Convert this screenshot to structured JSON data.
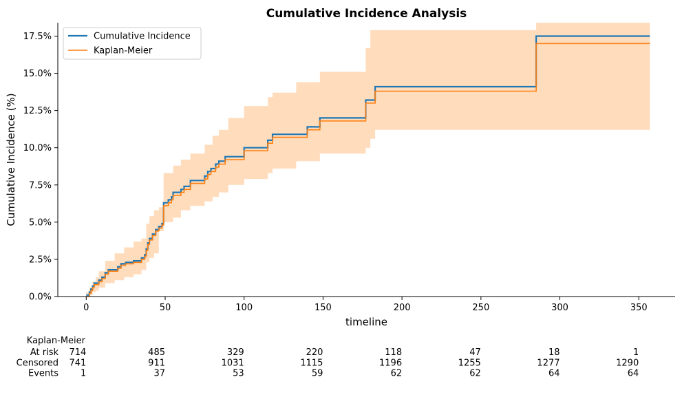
{
  "chart_data": {
    "type": "line",
    "title": "Cumulative Incidence Analysis",
    "xlabel": "timeline",
    "ylabel": "Cumulative Incidence (%)",
    "xlim": [
      -18,
      373
    ],
    "ylim": [
      0,
      18.4
    ],
    "x_ticks": [
      0,
      50,
      100,
      150,
      200,
      250,
      300,
      350
    ],
    "x_tick_labels": [
      "0",
      "50",
      "100",
      "150",
      "200",
      "250",
      "300",
      "350"
    ],
    "y_ticks": [
      0,
      2.5,
      5,
      7.5,
      10,
      12.5,
      15,
      17.5
    ],
    "y_tick_labels": [
      "0.0%",
      "2.5%",
      "5.0%",
      "7.5%",
      "10.0%",
      "12.5%",
      "15.0%",
      "17.5%"
    ],
    "grid": false,
    "legend_placement": "top-left",
    "series": [
      {
        "name": "Cumulative Incidence",
        "color": "#1f77b4",
        "step": "post",
        "x": [
          0,
          2,
          3,
          4,
          5,
          8,
          10,
          12,
          14,
          20,
          22,
          25,
          30,
          35,
          37,
          38,
          39,
          40,
          42,
          44,
          46,
          48,
          49,
          52,
          54,
          55,
          60,
          62,
          66,
          75,
          77,
          79,
          82,
          84,
          88,
          100,
          115,
          118,
          140,
          148,
          177,
          183,
          285,
          357
        ],
        "y": [
          0.1,
          0.3,
          0.5,
          0.7,
          0.9,
          1.1,
          1.3,
          1.6,
          1.8,
          2.0,
          2.2,
          2.3,
          2.4,
          2.6,
          2.8,
          3.2,
          3.6,
          3.9,
          4.2,
          4.5,
          4.7,
          4.9,
          6.3,
          6.5,
          6.7,
          7.0,
          7.2,
          7.4,
          7.8,
          8.1,
          8.4,
          8.6,
          8.9,
          9.1,
          9.4,
          10.0,
          10.5,
          10.9,
          11.4,
          12.0,
          13.2,
          14.1,
          17.5,
          17.5
        ]
      },
      {
        "name": "Kaplan-Meier",
        "color": "#ff7f0e",
        "step": "post",
        "x": [
          0,
          2,
          3,
          4,
          5,
          8,
          10,
          12,
          14,
          20,
          22,
          25,
          30,
          35,
          37,
          38,
          39,
          40,
          42,
          44,
          46,
          48,
          49,
          52,
          54,
          55,
          60,
          62,
          66,
          75,
          77,
          79,
          82,
          84,
          88,
          100,
          115,
          118,
          140,
          148,
          177,
          183,
          285,
          357
        ],
        "y": [
          0.0,
          0.2,
          0.4,
          0.6,
          0.8,
          1.0,
          1.2,
          1.5,
          1.7,
          1.9,
          2.1,
          2.2,
          2.3,
          2.5,
          2.7,
          3.1,
          3.5,
          3.8,
          4.1,
          4.4,
          4.6,
          4.8,
          6.1,
          6.3,
          6.5,
          6.8,
          7.0,
          7.2,
          7.6,
          7.9,
          8.2,
          8.4,
          8.7,
          8.9,
          9.2,
          9.8,
          10.3,
          10.7,
          11.2,
          11.8,
          13.0,
          13.8,
          17.0,
          17.0
        ]
      }
    ],
    "confidence_band": {
      "series": "Kaplan-Meier",
      "color": "#ffdcbc",
      "x": [
        0,
        2,
        4,
        6,
        8,
        12,
        18,
        24,
        30,
        35,
        38,
        40,
        43,
        46,
        49,
        55,
        60,
        66,
        75,
        80,
        84,
        90,
        100,
        115,
        118,
        133,
        148,
        177,
        180,
        183,
        285,
        357
      ],
      "lower": [
        0.0,
        0.0,
        0.1,
        0.3,
        0.4,
        0.6,
        0.9,
        1.1,
        1.3,
        1.5,
        1.8,
        2.3,
        2.6,
        2.9,
        4.4,
        5.0,
        5.3,
        5.8,
        6.1,
        6.4,
        6.7,
        7.0,
        7.5,
        7.9,
        8.3,
        8.6,
        9.1,
        9.6,
        10.0,
        10.6,
        11.2,
        11.2
      ],
      "upper": [
        0.3,
        0.6,
        1.0,
        1.3,
        1.7,
        2.4,
        2.9,
        3.3,
        3.7,
        3.9,
        4.9,
        5.4,
        5.8,
        6.0,
        8.3,
        8.8,
        9.2,
        9.6,
        10.2,
        10.8,
        11.2,
        12.0,
        12.8,
        13.4,
        13.7,
        14.4,
        15.1,
        16.7,
        17.9,
        17.9,
        18.4,
        18.4
      ]
    },
    "at_risk_table": {
      "title": "Kaplan-Meier",
      "times": [
        0,
        50,
        100,
        150,
        200,
        250,
        300,
        350
      ],
      "rows": [
        {
          "label": "At risk",
          "values": [
            "714",
            "485",
            "329",
            "220",
            "118",
            "47",
            "18",
            "1"
          ]
        },
        {
          "label": "Censored",
          "values": [
            "741",
            "911",
            "1031",
            "1115",
            "1196",
            "1255",
            "1277",
            "1290"
          ]
        },
        {
          "label": "Events",
          "values": [
            "1",
            "37",
            "53",
            "59",
            "62",
            "62",
            "64",
            "64"
          ]
        }
      ]
    }
  }
}
